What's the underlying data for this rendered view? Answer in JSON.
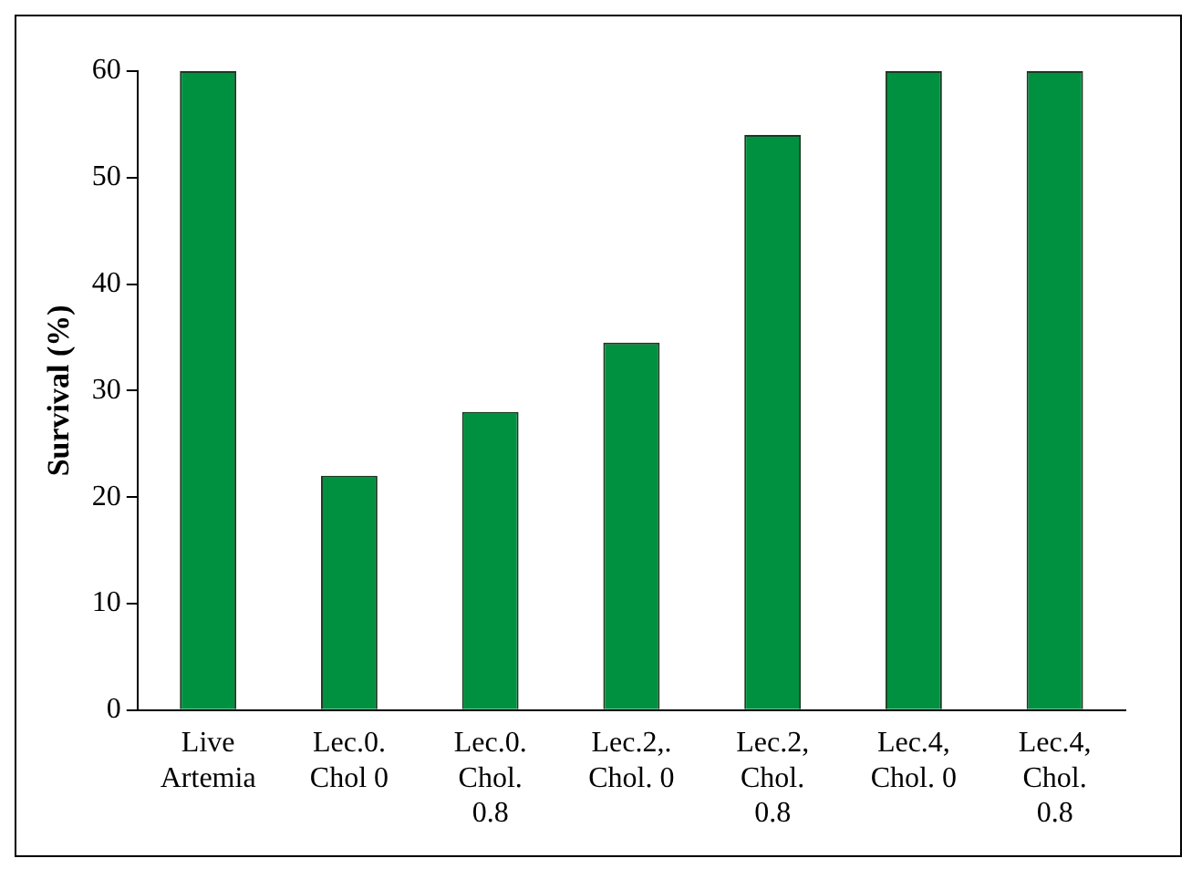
{
  "chart_data": {
    "type": "bar",
    "ylabel": "Survival (%)",
    "categories": [
      "Live Artemia",
      "Lec.0. Chol 0",
      "Lec.0. Chol. 0.8",
      "Lec.2,. Chol. 0",
      "Lec.2, Chol. 0.8",
      "Lec.4, Chol. 0",
      "Lec.4, Chol. 0.8"
    ],
    "values": [
      60,
      22,
      28,
      34.5,
      54,
      60,
      60
    ],
    "color": "#009140",
    "ylim": [
      0,
      60
    ],
    "yticks": [
      0,
      10,
      20,
      30,
      40,
      50,
      60
    ],
    "grid": false,
    "legend": false
  }
}
